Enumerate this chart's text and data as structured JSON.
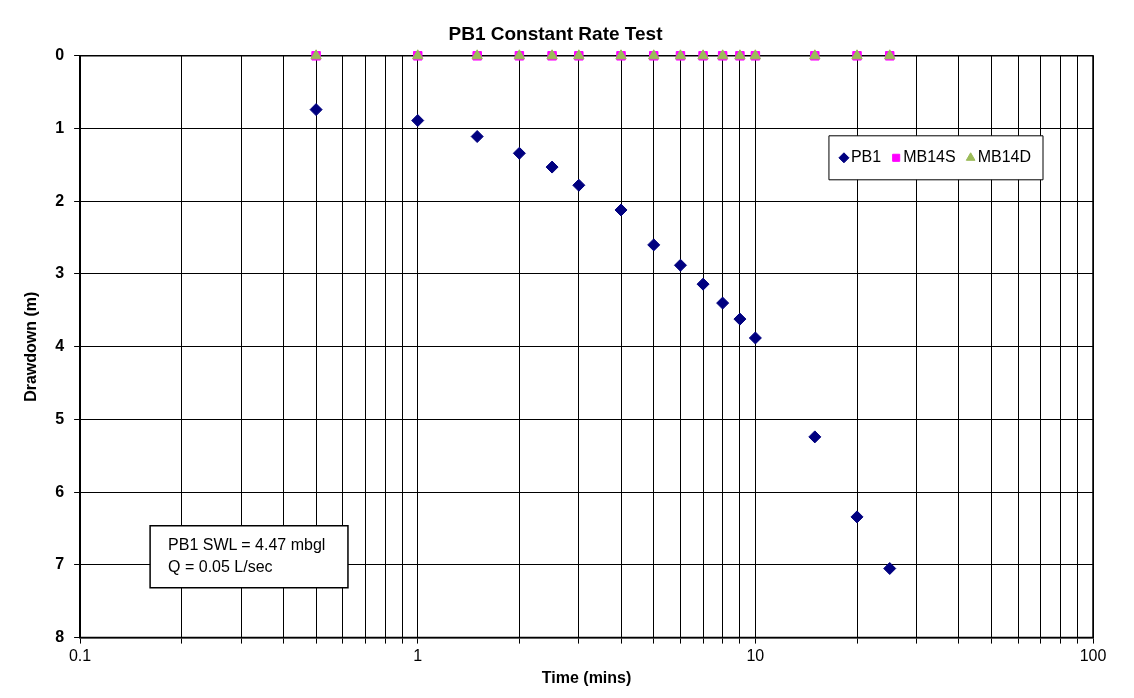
{
  "chart_data": {
    "type": "scatter",
    "title": "PB1 Constant Rate Test",
    "xlabel": "Time (mins)",
    "ylabel": "Drawdown (m)",
    "log": "x",
    "grid": true,
    "legend": "top right",
    "xlim": [
      0.1,
      100
    ],
    "xticks": [
      0.1,
      {
        "value": 0.2,
        "label": null
      },
      {
        "value": 0.3,
        "label": null
      },
      {
        "value": 0.4,
        "label": null
      },
      {
        "value": 0.5,
        "label": null
      },
      {
        "value": 0.6,
        "label": null
      },
      {
        "value": 0.7,
        "label": null
      },
      {
        "value": 0.8,
        "label": null
      },
      {
        "value": 0.9,
        "label": null
      },
      1,
      {
        "value": 2,
        "label": null
      },
      {
        "value": 3,
        "label": null
      },
      {
        "value": 4,
        "label": null
      },
      {
        "value": 5,
        "label": null
      },
      {
        "value": 6,
        "label": null
      },
      {
        "value": 7,
        "label": null
      },
      {
        "value": 8,
        "label": null
      },
      {
        "value": 9,
        "label": null
      },
      10,
      {
        "value": 20,
        "label": null
      },
      {
        "value": 30,
        "label": null
      },
      {
        "value": 40,
        "label": null
      },
      {
        "value": 50,
        "label": null
      },
      {
        "value": 60,
        "label": null
      },
      {
        "value": 70,
        "label": null
      },
      {
        "value": 80,
        "label": null
      },
      {
        "value": 90,
        "label": null
      },
      100
    ],
    "ylim": [
      8,
      0
    ],
    "yticks": [
      0,
      1,
      2,
      3,
      4,
      5,
      6,
      7,
      8
    ],
    "x": [
      0.5,
      1,
      1.5,
      2,
      2.5,
      3,
      4,
      5,
      6,
      7,
      8,
      9,
      10,
      15,
      20,
      25
    ],
    "series": [
      {
        "name": "PB1",
        "color": "#000080",
        "marker": "diamond",
        "values": [
          0.74,
          0.89,
          1.11,
          1.34,
          1.53,
          1.78,
          2.12,
          2.6,
          2.88,
          3.14,
          3.4,
          3.62,
          3.88,
          5.24,
          6.34,
          7.05
        ]
      },
      {
        "name": "MB14S",
        "color": "#ff00ff",
        "marker": "square",
        "values": [
          0,
          0,
          0,
          0,
          0,
          0,
          0,
          0,
          0,
          0,
          0,
          0,
          0,
          0,
          0,
          0
        ]
      },
      {
        "name": "MB14D",
        "color": "#9bbb59",
        "marker": "triangle",
        "values": [
          0,
          0,
          0,
          0,
          0,
          0,
          0,
          0,
          0,
          0,
          0,
          0,
          0,
          0,
          0,
          0
        ]
      }
    ],
    "annotations": [
      "PB1 SWL = 4.47 mbgl",
      "Q = 0.05 L/sec"
    ]
  }
}
